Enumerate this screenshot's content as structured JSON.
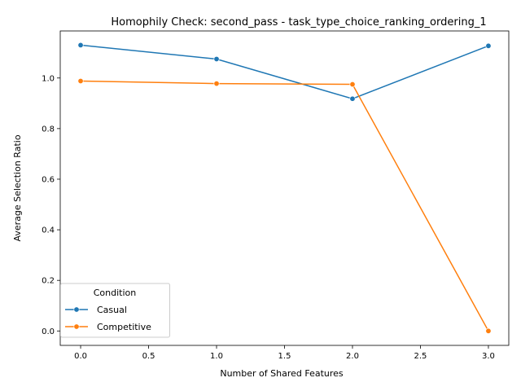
{
  "chart_data": {
    "type": "line",
    "title": "Homophily Check: second_pass - task_type_choice_ranking_ordering_1",
    "xlabel": "Number of Shared Features",
    "ylabel": "Average Selection Ratio",
    "x": [
      0,
      1,
      2,
      3
    ],
    "xlim": [
      -0.15,
      3.15
    ],
    "ylim": [
      -0.057,
      1.186
    ],
    "xticks": [
      0.0,
      0.5,
      1.0,
      1.5,
      2.0,
      2.5,
      3.0
    ],
    "xtick_labels": [
      "0.0",
      "0.5",
      "1.0",
      "1.5",
      "2.0",
      "2.5",
      "3.0"
    ],
    "yticks": [
      0.0,
      0.2,
      0.4,
      0.6,
      0.8,
      1.0
    ],
    "ytick_labels": [
      "0.0",
      "0.2",
      "0.4",
      "0.6",
      "0.8",
      "1.0"
    ],
    "grid": false,
    "legend": {
      "title": "Condition",
      "placement": "lower-left"
    },
    "series": [
      {
        "name": "Casual",
        "color": "#1f77b4",
        "marker": "circle",
        "values": [
          1.13,
          1.075,
          0.918,
          1.127
        ]
      },
      {
        "name": "Competitive",
        "color": "#ff7f0e",
        "marker": "circle",
        "values": [
          0.988,
          0.978,
          0.975,
          0.0
        ]
      }
    ]
  }
}
